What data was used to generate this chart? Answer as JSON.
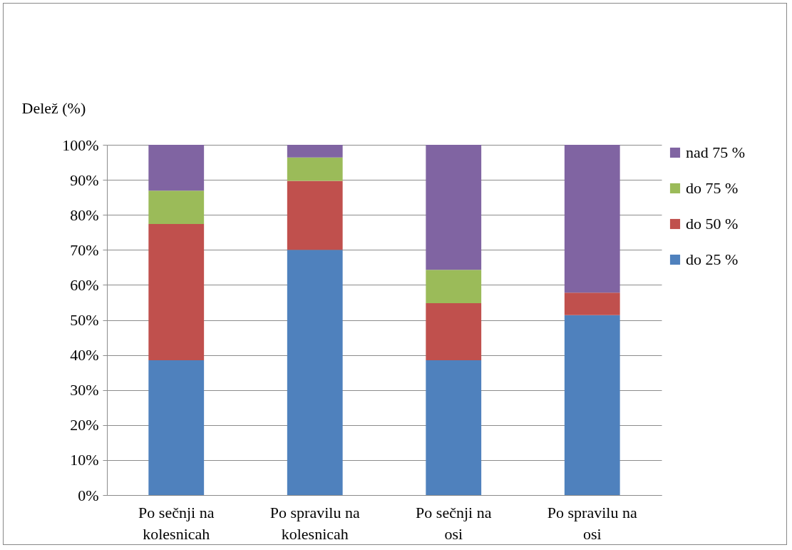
{
  "chart_data": {
    "type": "bar",
    "stacked": true,
    "ylabel": "Delež (%)",
    "categories": [
      "Po sečnji na kolesnicah",
      "Po spravilu na kolesnicah",
      "Po sečnji na osi",
      "Po spravilu na osi"
    ],
    "series": [
      {
        "name": "do 25 %",
        "color": "#4f81bd",
        "values": [
          38.5,
          70,
          38.5,
          51.4
        ]
      },
      {
        "name": "do 50 %",
        "color": "#c0504d",
        "values": [
          38.9,
          19.7,
          16.3,
          6.4
        ]
      },
      {
        "name": "do 75 %",
        "color": "#9bbb59",
        "values": [
          9.5,
          6.7,
          9.5,
          0
        ]
      },
      {
        "name": "nad 75 %",
        "color": "#8064a2",
        "values": [
          13.1,
          3.6,
          35.7,
          42.2
        ]
      }
    ],
    "ylim": [
      0,
      100
    ],
    "yticks": [
      {
        "value": 0,
        "label": "0%"
      },
      {
        "value": 10,
        "label": "10%"
      },
      {
        "value": 20,
        "label": "20%"
      },
      {
        "value": 30,
        "label": "30%"
      },
      {
        "value": 40,
        "label": "40%"
      },
      {
        "value": 50,
        "label": "50%"
      },
      {
        "value": 60,
        "label": "60%"
      },
      {
        "value": 70,
        "label": "70%"
      },
      {
        "value": 80,
        "label": "80%"
      },
      {
        "value": 90,
        "label": "90%"
      },
      {
        "value": 100,
        "label": "100%"
      }
    ],
    "grid": "y",
    "legend": "right"
  }
}
